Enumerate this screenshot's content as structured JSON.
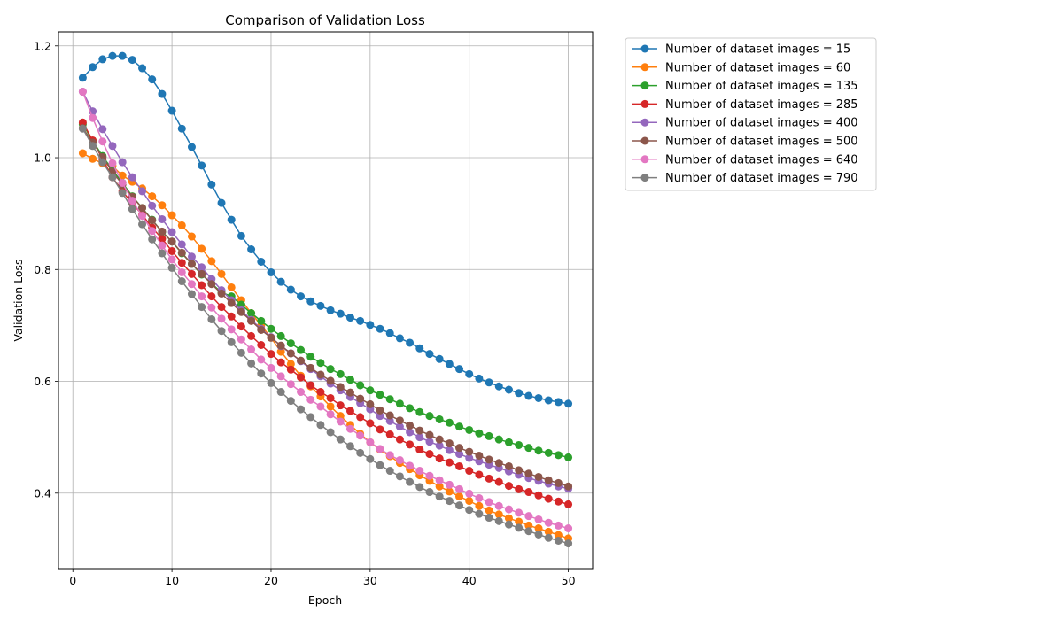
{
  "chart_data": {
    "type": "line",
    "title": "Comparison of Validation Loss",
    "xlabel": "Epoch",
    "ylabel": "Validation Loss",
    "xlim": [
      -1.45,
      52.45
    ],
    "ylim": [
      0.265,
      1.225
    ],
    "xticks": [
      0,
      10,
      20,
      30,
      40,
      50
    ],
    "yticks": [
      0.4,
      0.6,
      0.8,
      1.0,
      1.2
    ],
    "xtick_labels": [
      "0",
      "10",
      "20",
      "30",
      "40",
      "50"
    ],
    "ytick_labels": [
      "0.4",
      "0.6",
      "0.8",
      "1.0",
      "1.2"
    ],
    "grid": true,
    "legend_position": "outside-upper-right",
    "x": [
      1,
      2,
      3,
      4,
      5,
      6,
      7,
      8,
      9,
      10,
      11,
      12,
      13,
      14,
      15,
      16,
      17,
      18,
      19,
      20,
      21,
      22,
      23,
      24,
      25,
      26,
      27,
      28,
      29,
      30,
      31,
      32,
      33,
      34,
      35,
      36,
      37,
      38,
      39,
      40,
      41,
      42,
      43,
      44,
      45,
      46,
      47,
      48,
      49,
      50
    ],
    "series": [
      {
        "name": "Number of dataset images = 15",
        "color": "#1f77b4",
        "values": [
          1.143,
          1.162,
          1.176,
          1.182,
          1.182,
          1.175,
          1.16,
          1.14,
          1.114,
          1.084,
          1.052,
          1.019,
          0.986,
          0.952,
          0.919,
          0.889,
          0.86,
          0.836,
          0.814,
          0.795,
          0.778,
          0.764,
          0.752,
          0.743,
          0.735,
          0.727,
          0.721,
          0.714,
          0.708,
          0.701,
          0.694,
          0.686,
          0.677,
          0.669,
          0.659,
          0.649,
          0.64,
          0.631,
          0.622,
          0.613,
          0.605,
          0.598,
          0.591,
          0.585,
          0.579,
          0.574,
          0.57,
          0.566,
          0.563,
          0.56
        ]
      },
      {
        "name": "Number of dataset images = 60",
        "color": "#ff7f0e",
        "values": [
          1.008,
          0.998,
          0.99,
          0.985,
          0.968,
          0.957,
          0.945,
          0.931,
          0.915,
          0.897,
          0.879,
          0.859,
          0.837,
          0.815,
          0.792,
          0.768,
          0.745,
          0.722,
          0.7,
          0.678,
          0.653,
          0.631,
          0.61,
          0.591,
          0.573,
          0.555,
          0.538,
          0.522,
          0.506,
          0.491,
          0.478,
          0.466,
          0.454,
          0.443,
          0.432,
          0.422,
          0.412,
          0.403,
          0.394,
          0.386,
          0.377,
          0.369,
          0.362,
          0.355,
          0.349,
          0.342,
          0.337,
          0.331,
          0.325,
          0.319
        ]
      },
      {
        "name": "Number of dataset images = 135",
        "color": "#2ca02c",
        "values": [
          1.06,
          1.03,
          1.003,
          0.978,
          0.955,
          0.931,
          0.91,
          0.889,
          0.867,
          0.85,
          0.829,
          0.81,
          0.791,
          0.775,
          0.759,
          0.752,
          0.737,
          0.722,
          0.708,
          0.694,
          0.681,
          0.668,
          0.656,
          0.644,
          0.633,
          0.622,
          0.613,
          0.603,
          0.593,
          0.584,
          0.576,
          0.568,
          0.56,
          0.552,
          0.545,
          0.538,
          0.532,
          0.526,
          0.519,
          0.513,
          0.507,
          0.502,
          0.496,
          0.491,
          0.486,
          0.481,
          0.476,
          0.472,
          0.468,
          0.464
        ]
      },
      {
        "name": "Number of dataset images = 285",
        "color": "#d62728",
        "values": [
          1.063,
          1.031,
          0.997,
          0.965,
          0.94,
          0.918,
          0.898,
          0.875,
          0.855,
          0.833,
          0.812,
          0.792,
          0.772,
          0.752,
          0.733,
          0.716,
          0.698,
          0.681,
          0.665,
          0.649,
          0.634,
          0.621,
          0.607,
          0.593,
          0.581,
          0.57,
          0.557,
          0.547,
          0.536,
          0.525,
          0.514,
          0.505,
          0.496,
          0.487,
          0.478,
          0.47,
          0.462,
          0.455,
          0.448,
          0.44,
          0.433,
          0.426,
          0.42,
          0.413,
          0.407,
          0.402,
          0.396,
          0.39,
          0.385,
          0.38
        ]
      },
      {
        "name": "Number of dataset images = 400",
        "color": "#9467bd",
        "values": [
          1.118,
          1.083,
          1.051,
          1.021,
          0.992,
          0.965,
          0.94,
          0.914,
          0.89,
          0.867,
          0.845,
          0.823,
          0.804,
          0.783,
          0.763,
          0.745,
          0.727,
          0.71,
          0.694,
          0.679,
          0.663,
          0.65,
          0.636,
          0.622,
          0.609,
          0.596,
          0.584,
          0.572,
          0.561,
          0.55,
          0.538,
          0.529,
          0.519,
          0.509,
          0.5,
          0.492,
          0.485,
          0.477,
          0.47,
          0.463,
          0.457,
          0.451,
          0.445,
          0.439,
          0.433,
          0.427,
          0.422,
          0.417,
          0.412,
          0.408
        ]
      },
      {
        "name": "Number of dataset images = 500",
        "color": "#8c564b",
        "values": [
          1.053,
          1.027,
          1.001,
          0.975,
          0.952,
          0.93,
          0.91,
          0.888,
          0.868,
          0.85,
          0.83,
          0.81,
          0.792,
          0.774,
          0.757,
          0.74,
          0.724,
          0.708,
          0.692,
          0.678,
          0.664,
          0.65,
          0.637,
          0.624,
          0.612,
          0.601,
          0.59,
          0.58,
          0.569,
          0.559,
          0.548,
          0.539,
          0.53,
          0.521,
          0.512,
          0.504,
          0.496,
          0.489,
          0.481,
          0.474,
          0.467,
          0.46,
          0.454,
          0.448,
          0.441,
          0.435,
          0.429,
          0.423,
          0.418,
          0.412
        ]
      },
      {
        "name": "Number of dataset images = 640",
        "color": "#e377c2",
        "values": [
          1.118,
          1.071,
          1.029,
          0.99,
          0.955,
          0.923,
          0.896,
          0.869,
          0.843,
          0.818,
          0.795,
          0.774,
          0.752,
          0.732,
          0.712,
          0.693,
          0.675,
          0.657,
          0.639,
          0.624,
          0.609,
          0.595,
          0.581,
          0.567,
          0.555,
          0.541,
          0.528,
          0.515,
          0.503,
          0.491,
          0.479,
          0.468,
          0.459,
          0.449,
          0.44,
          0.431,
          0.423,
          0.415,
          0.407,
          0.399,
          0.391,
          0.384,
          0.377,
          0.371,
          0.365,
          0.359,
          0.353,
          0.347,
          0.342,
          0.337
        ]
      },
      {
        "name": "Number of dataset images = 790",
        "color": "#7f7f7f",
        "values": [
          1.052,
          1.021,
          0.992,
          0.965,
          0.937,
          0.908,
          0.881,
          0.854,
          0.829,
          0.803,
          0.779,
          0.756,
          0.733,
          0.711,
          0.69,
          0.67,
          0.651,
          0.632,
          0.614,
          0.597,
          0.581,
          0.565,
          0.55,
          0.536,
          0.522,
          0.509,
          0.496,
          0.484,
          0.472,
          0.461,
          0.45,
          0.44,
          0.43,
          0.42,
          0.411,
          0.402,
          0.394,
          0.386,
          0.378,
          0.37,
          0.363,
          0.356,
          0.35,
          0.344,
          0.338,
          0.332,
          0.326,
          0.32,
          0.315,
          0.31
        ]
      }
    ]
  }
}
